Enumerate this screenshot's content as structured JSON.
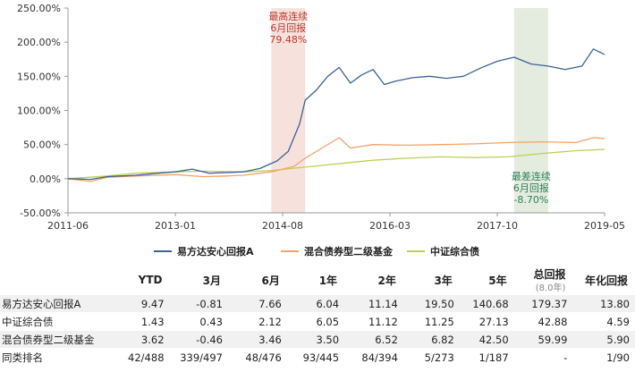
{
  "chart_data": {
    "type": "line",
    "x_ticks": [
      "2011-06",
      "2013-01",
      "2014-08",
      "2016-03",
      "2017-10",
      "2019-05"
    ],
    "y_ticks": [
      "-50.00%",
      "0.00%",
      "50.00%",
      "100.00%",
      "150.00%",
      "200.00%",
      "250.00%"
    ],
    "ylim": [
      -50,
      250
    ],
    "xlim": [
      "2011-06",
      "2019-05"
    ],
    "grid": false,
    "legend_position": "bottom",
    "series": [
      {
        "name": "易方达安心回报A",
        "color": "#3c6393",
        "points": [
          [
            "2011-06",
            0
          ],
          [
            "2011-10",
            -1
          ],
          [
            "2012-01",
            3
          ],
          [
            "2012-06",
            5
          ],
          [
            "2012-10",
            8
          ],
          [
            "2013-01",
            10
          ],
          [
            "2013-04",
            14
          ],
          [
            "2013-07",
            8
          ],
          [
            "2013-10",
            9
          ],
          [
            "2014-01",
            10
          ],
          [
            "2014-04",
            15
          ],
          [
            "2014-07",
            26
          ],
          [
            "2014-09",
            40
          ],
          [
            "2014-11",
            80
          ],
          [
            "2014-12",
            115
          ],
          [
            "2015-02",
            130
          ],
          [
            "2015-04",
            150
          ],
          [
            "2015-06",
            163
          ],
          [
            "2015-08",
            140
          ],
          [
            "2015-10",
            152
          ],
          [
            "2015-12",
            160
          ],
          [
            "2016-02",
            138
          ],
          [
            "2016-04",
            143
          ],
          [
            "2016-07",
            148
          ],
          [
            "2016-10",
            150
          ],
          [
            "2017-01",
            147
          ],
          [
            "2017-04",
            150
          ],
          [
            "2017-07",
            162
          ],
          [
            "2017-10",
            172
          ],
          [
            "2018-01",
            178
          ],
          [
            "2018-04",
            168
          ],
          [
            "2018-07",
            165
          ],
          [
            "2018-10",
            160
          ],
          [
            "2019-01",
            165
          ],
          [
            "2019-03",
            190
          ],
          [
            "2019-05",
            182
          ]
        ]
      },
      {
        "name": "混合债券型二级基金",
        "color": "#f0a36b",
        "points": [
          [
            "2011-06",
            0
          ],
          [
            "2011-10",
            -4
          ],
          [
            "2012-01",
            2
          ],
          [
            "2012-06",
            4
          ],
          [
            "2012-10",
            5
          ],
          [
            "2013-01",
            6
          ],
          [
            "2013-06",
            3
          ],
          [
            "2013-10",
            4
          ],
          [
            "2014-01",
            5
          ],
          [
            "2014-06",
            10
          ],
          [
            "2014-10",
            18
          ],
          [
            "2014-12",
            30
          ],
          [
            "2015-03",
            45
          ],
          [
            "2015-06",
            60
          ],
          [
            "2015-08",
            45
          ],
          [
            "2015-12",
            50
          ],
          [
            "2016-06",
            49
          ],
          [
            "2016-12",
            50
          ],
          [
            "2017-06",
            51
          ],
          [
            "2017-12",
            53
          ],
          [
            "2018-06",
            54
          ],
          [
            "2018-12",
            53
          ],
          [
            "2019-03",
            60
          ],
          [
            "2019-05",
            59
          ]
        ]
      },
      {
        "name": "中证综合债",
        "color": "#c0cf57",
        "points": [
          [
            "2011-06",
            0
          ],
          [
            "2012-01",
            4
          ],
          [
            "2012-06",
            8
          ],
          [
            "2013-01",
            10
          ],
          [
            "2013-06",
            11
          ],
          [
            "2014-01",
            10
          ],
          [
            "2014-06",
            12
          ],
          [
            "2014-12",
            17
          ],
          [
            "2015-06",
            22
          ],
          [
            "2015-12",
            27
          ],
          [
            "2016-06",
            30
          ],
          [
            "2016-12",
            32
          ],
          [
            "2017-06",
            31
          ],
          [
            "2017-12",
            32
          ],
          [
            "2018-06",
            37
          ],
          [
            "2018-12",
            41
          ],
          [
            "2019-05",
            43
          ]
        ]
      }
    ],
    "highlights": [
      {
        "label_lines": [
          "最高连续",
          "6月回报",
          "79.48%"
        ],
        "start": "2014-06",
        "end": "2014-12",
        "color": "#f7e1dd",
        "text_color": "#c0392b"
      },
      {
        "label_lines": [
          "最差连续",
          "6月回报",
          "-8.70%"
        ],
        "start": "2018-01",
        "end": "2018-07",
        "color": "#e3ecde",
        "text_color": "#2e7d5b"
      }
    ]
  },
  "legend": [
    "易方达安心回报A",
    "混合债券型二级基金",
    "中证综合债"
  ],
  "table": {
    "headers": [
      "YTD",
      "3月",
      "6月",
      "1年",
      "2年",
      "3年",
      "5年",
      "总回报",
      "年化回报"
    ],
    "header_sub": [
      "",
      "",
      "",
      "",
      "",
      "",
      "",
      "(8.0年)",
      ""
    ],
    "rows": [
      {
        "name": "易方达安心回报A",
        "values": [
          "9.47",
          "-0.81",
          "7.66",
          "6.04",
          "11.14",
          "19.50",
          "140.68",
          "179.37",
          "13.80"
        ]
      },
      {
        "name": "中证综合债",
        "values": [
          "1.43",
          "0.43",
          "2.12",
          "6.05",
          "11.12",
          "11.25",
          "27.13",
          "42.88",
          "4.59"
        ]
      },
      {
        "name": "混合债券型二级基金",
        "values": [
          "3.62",
          "-0.46",
          "3.46",
          "3.50",
          "6.52",
          "6.82",
          "42.50",
          "59.99",
          "5.90"
        ]
      },
      {
        "name": "同类排名",
        "values": [
          "42/488",
          "339/497",
          "48/476",
          "93/445",
          "84/394",
          "5/273",
          "1/187",
          "-",
          "1/90"
        ]
      }
    ]
  }
}
